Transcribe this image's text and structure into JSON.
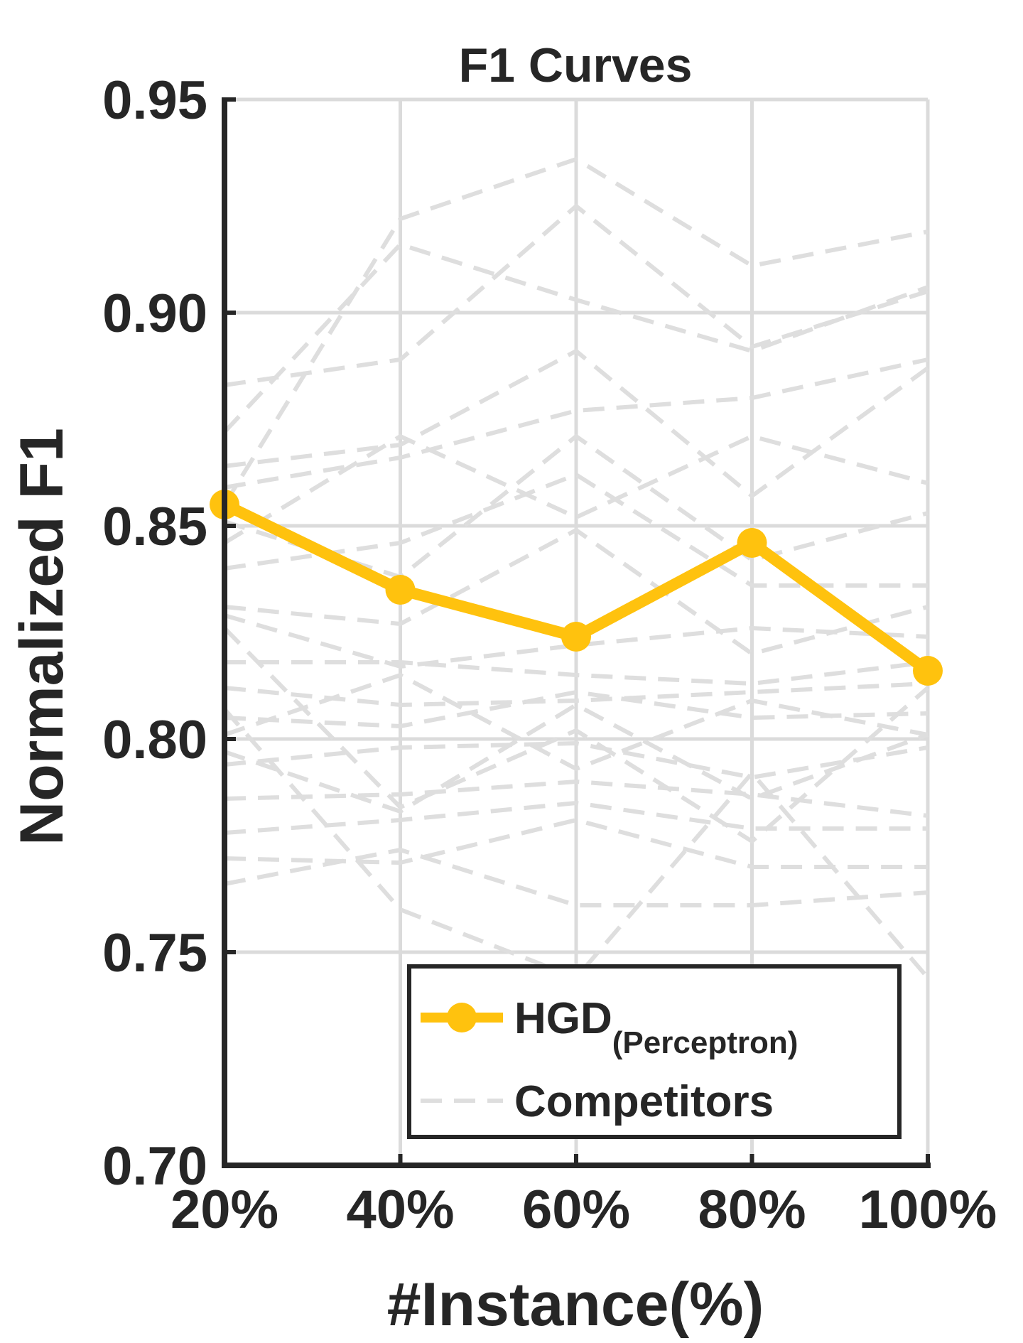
{
  "chart_data": {
    "type": "line",
    "title": "F1 Curves",
    "xlabel": "#Instance(%)",
    "ylabel": "Normalized F1",
    "categories": [
      "20%",
      "40%",
      "60%",
      "80%",
      "100%"
    ],
    "x": [
      20,
      40,
      60,
      80,
      100
    ],
    "ylim": [
      0.7,
      0.95
    ],
    "yticks": [
      "0.70",
      "0.75",
      "0.80",
      "0.85",
      "0.90",
      "0.95"
    ],
    "grid": true,
    "legend_position": "bottom-right",
    "legend": [
      {
        "label": "HGD",
        "subscript": "(Perceptron)"
      },
      {
        "label": "Competitors"
      }
    ],
    "series": [
      {
        "name": "HGD(Perceptron)",
        "role": "main",
        "color": "#FFC20E",
        "values": [
          0.855,
          0.835,
          0.824,
          0.846,
          0.816
        ]
      }
    ],
    "competitor_color": "#DEDEDE",
    "competitors": [
      [
        0.855,
        0.922,
        0.936,
        0.911,
        0.919
      ],
      [
        0.883,
        0.889,
        0.925,
        0.892,
        0.905
      ],
      [
        0.872,
        0.916,
        0.903,
        0.891,
        0.906
      ],
      [
        0.859,
        0.866,
        0.877,
        0.88,
        0.889
      ],
      [
        0.864,
        0.869,
        0.891,
        0.857,
        0.887
      ],
      [
        0.846,
        0.871,
        0.852,
        0.871,
        0.86
      ],
      [
        0.851,
        0.838,
        0.871,
        0.842,
        0.853
      ],
      [
        0.84,
        0.846,
        0.862,
        0.836,
        0.836
      ],
      [
        0.831,
        0.827,
        0.849,
        0.82,
        0.831
      ],
      [
        0.829,
        0.817,
        0.822,
        0.826,
        0.824
      ],
      [
        0.818,
        0.818,
        0.815,
        0.813,
        0.818
      ],
      [
        0.812,
        0.808,
        0.809,
        0.811,
        0.813
      ],
      [
        0.805,
        0.803,
        0.811,
        0.805,
        0.806
      ],
      [
        0.801,
        0.815,
        0.793,
        0.809,
        0.801
      ],
      [
        0.794,
        0.798,
        0.799,
        0.791,
        0.798
      ],
      [
        0.786,
        0.787,
        0.79,
        0.787,
        0.782
      ],
      [
        0.778,
        0.781,
        0.785,
        0.779,
        0.779
      ],
      [
        0.772,
        0.771,
        0.781,
        0.77,
        0.77
      ],
      [
        0.766,
        0.774,
        0.761,
        0.761,
        0.764
      ],
      [
        0.807,
        0.76,
        0.744,
        0.792,
        0.744
      ],
      [
        0.797,
        0.783,
        0.808,
        0.786,
        0.801
      ],
      [
        0.826,
        0.784,
        0.802,
        0.776,
        0.812
      ]
    ]
  }
}
